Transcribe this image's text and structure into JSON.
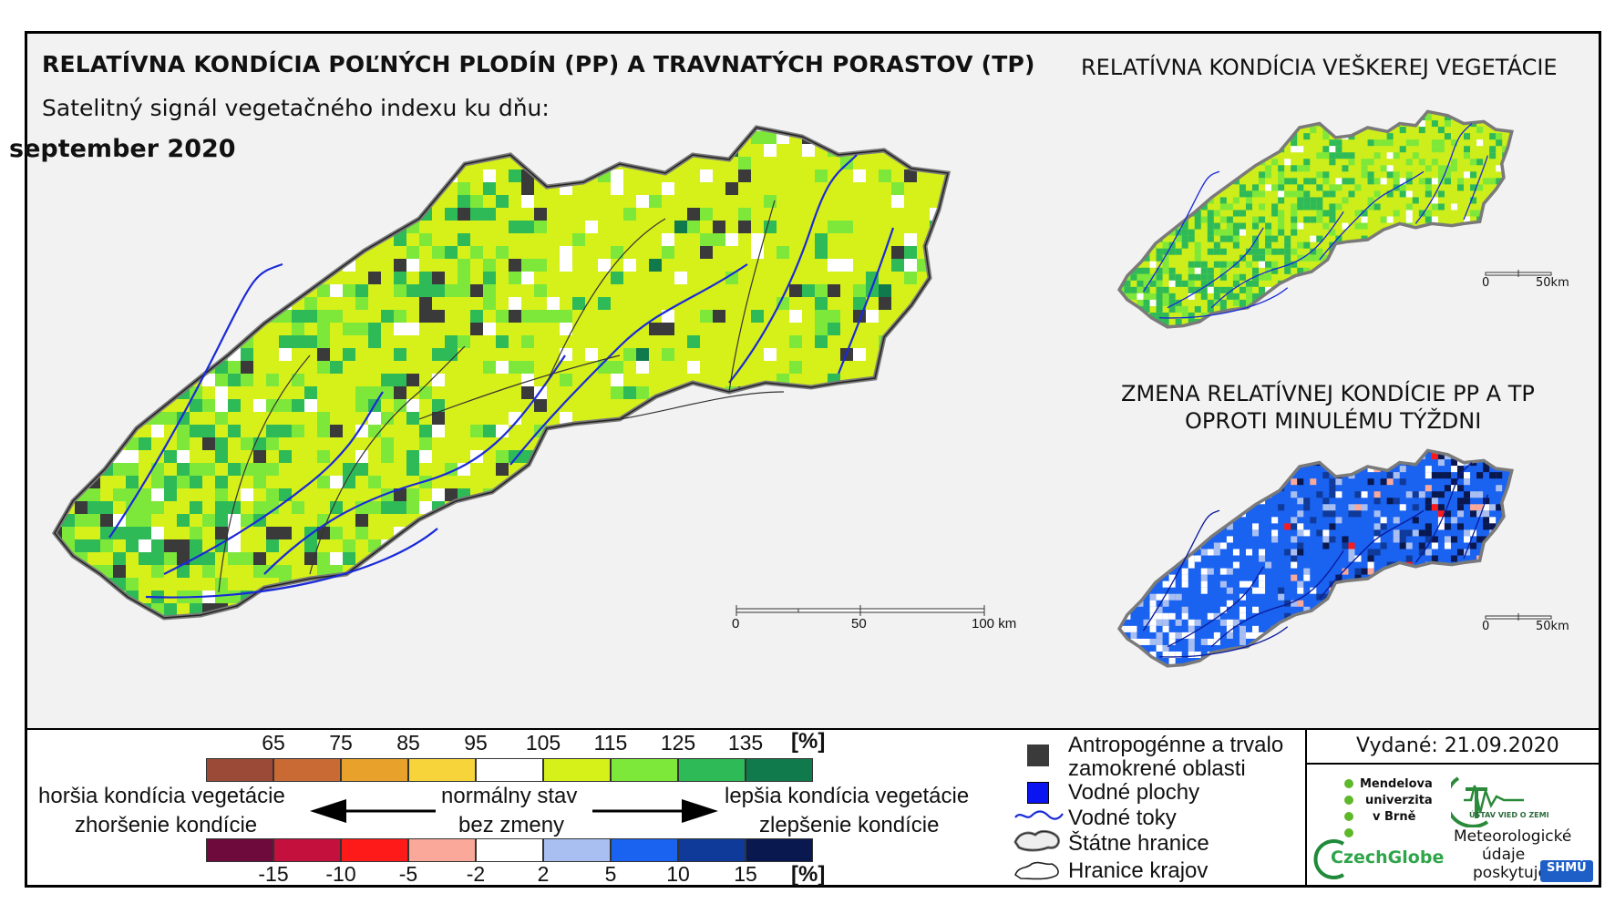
{
  "main_title": "RELATÍVNA KONDÍCIA POĽNÝCH PLODÍN (PP) A TRAVNATÝCH PORASTOV (TP)",
  "subtitle": "Satelitný signál vegetačného indexu ku dňu:",
  "date_label": "september 2020",
  "main_scale": {
    "zero": "0",
    "mid": "50",
    "end": "100 km"
  },
  "inset_top": {
    "title": "RELATÍVNA KONDÍCIA VEŠKEREJ VEGETÁCIE",
    "scale_zero": "0",
    "scale_end": "50km"
  },
  "inset_bottom": {
    "title_line1": "ZMENA RELATÍVNEJ KONDÍCIE PP A TP",
    "title_line2": "OPROTI MINULÉMU TÝŽDNI",
    "scale_zero": "0",
    "scale_end": "50km"
  },
  "legend": {
    "unit_top": "[%]",
    "unit_bottom": "[%]",
    "top_ticks": [
      "65",
      "75",
      "85",
      "95",
      "105",
      "115",
      "125",
      "135"
    ],
    "top_colors": [
      "#9c4a38",
      "#c96a34",
      "#e8a12a",
      "#f6d43a",
      "#ffffff",
      "#d6f01a",
      "#7ee83a",
      "#2fba58",
      "#117a4c"
    ],
    "bottom_ticks": [
      "-15",
      "-10",
      "-5",
      "-2",
      "2",
      "5",
      "10",
      "15"
    ],
    "bottom_colors": [
      "#6e0a3c",
      "#c4103c",
      "#ff1a1a",
      "#f9a89a",
      "#ffffff",
      "#a9bff2",
      "#1a62f0",
      "#0f3a9a",
      "#0a1850"
    ],
    "worse_top": "horšia kondícia vegetácie",
    "worse_bottom": "zhoršenie kondície",
    "normal_top": "normálny stav",
    "normal_bottom": "bez zmeny",
    "better_top": "lepšia kondícia vegetácie",
    "better_bottom": "zlepšenie kondície"
  },
  "symbols": {
    "anthropogenic_line1": "Antropogénne a trvalo",
    "anthropogenic_line2": "zamokrené oblasti",
    "water_bodies": "Vodné plochy",
    "rivers": "Vodné toky",
    "state_border": "Štátne hranice",
    "region_border": "Hranice krajov",
    "anthropogenic_color": "#3a3a3a",
    "water_color": "#0a14f0",
    "river_color": "#1a2ad8"
  },
  "issued": "Vydané: 21.09.2020",
  "logos": {
    "mendel_line1": "Mendelova",
    "mendel_line2": "univerzita",
    "mendel_line3": "v Brně",
    "ustav": "ÚSTAV VIED O ZEMI",
    "czechglobe": "CzechGlobe",
    "meteo_line1": "Meteorologické",
    "meteo_line2": "údaje",
    "meteo_line3": "poskytuje:",
    "shmu": "SHMÚ"
  }
}
